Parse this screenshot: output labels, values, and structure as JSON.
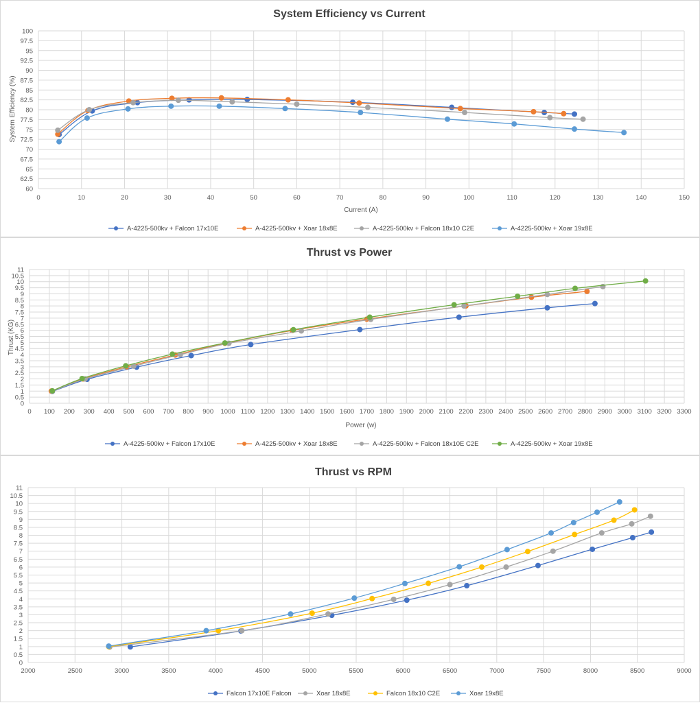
{
  "chart_data": [
    {
      "type": "line",
      "title": "System Efficiency vs Current",
      "xlabel": "Current (A)",
      "ylabel": "System Efficiency (%)",
      "xlim": [
        0,
        150
      ],
      "ylim": [
        60,
        100
      ],
      "xticks": [
        0,
        10,
        20,
        30,
        40,
        50,
        60,
        70,
        80,
        90,
        100,
        110,
        120,
        130,
        140,
        150
      ],
      "yticks": [
        60,
        62.5,
        65,
        67.5,
        70,
        72.5,
        75,
        77.5,
        80,
        82.5,
        85,
        87.5,
        90,
        92.5,
        95,
        97.5,
        100
      ],
      "grid": true,
      "legend_position": "bottom",
      "series": [
        {
          "name": "A-4225-500kv + Falcon 17x10E",
          "color": "#4472c4",
          "points": [
            [
              4.8,
              73.7
            ],
            [
              12.5,
              79.7
            ],
            [
              23,
              81.8
            ],
            [
              35,
              82.5
            ],
            [
              48.5,
              82.6
            ],
            [
              73,
              81.9
            ],
            [
              96,
              80.6
            ],
            [
              117.5,
              79.3
            ],
            [
              124.5,
              78.9
            ]
          ]
        },
        {
          "name": "A-4225-500kv + Xoar 18x8E",
          "color": "#ed7d31",
          "points": [
            [
              4.5,
              73.8
            ],
            [
              11.5,
              79.8
            ],
            [
              21,
              82.2
            ],
            [
              31,
              82.9
            ],
            [
              42.5,
              83.0
            ],
            [
              58,
              82.5
            ],
            [
              74.5,
              81.7
            ],
            [
              98,
              80.3
            ],
            [
              115,
              79.5
            ],
            [
              122,
              79.0
            ]
          ]
        },
        {
          "name": "A-4225-500kv + Falcon 18x10 C2E",
          "color": "#a5a5a5",
          "points": [
            [
              4.5,
              74.8
            ],
            [
              11.8,
              80.0
            ],
            [
              22,
              81.8
            ],
            [
              32.5,
              82.4
            ],
            [
              45,
              82.0
            ],
            [
              60,
              81.4
            ],
            [
              76.5,
              80.6
            ],
            [
              99,
              79.3
            ],
            [
              118.8,
              78.0
            ],
            [
              126.5,
              77.6
            ]
          ]
        },
        {
          "name": "A-4225-500kv + Xoar 19x8E",
          "color": "#5b9bd5",
          "points": [
            [
              4.8,
              71.9
            ],
            [
              11.3,
              77.9
            ],
            [
              20.8,
              80.2
            ],
            [
              30.8,
              80.9
            ],
            [
              42,
              80.9
            ],
            [
              57.3,
              80.3
            ],
            [
              74.8,
              79.3
            ],
            [
              95,
              77.6
            ],
            [
              110.5,
              76.4
            ],
            [
              124.5,
              75.1
            ],
            [
              136,
              74.2
            ]
          ]
        }
      ]
    },
    {
      "type": "line",
      "title": "Thrust  vs Power",
      "xlabel": "Power (w)",
      "ylabel": "Thrust (KG)",
      "xlim": [
        0,
        3300
      ],
      "ylim": [
        0,
        11
      ],
      "xticks": [
        0,
        100,
        200,
        300,
        400,
        500,
        600,
        700,
        800,
        900,
        1000,
        1100,
        1200,
        1300,
        1400,
        1500,
        1600,
        1700,
        1800,
        1900,
        2000,
        2100,
        2200,
        2300,
        2400,
        2500,
        2600,
        2700,
        2800,
        2900,
        3000,
        3100,
        3200,
        3300
      ],
      "yticks": [
        0,
        0.5,
        1,
        1.5,
        2,
        2.5,
        3,
        3.5,
        4,
        4.5,
        5,
        5.5,
        6,
        6.5,
        7,
        7.5,
        8,
        8.5,
        9,
        9.5,
        10,
        10.5,
        11
      ],
      "grid": true,
      "legend_position": "bottom",
      "series": [
        {
          "name": "A-4225-500kv + Falcon 17x10E",
          "color": "#4472c4",
          "points": [
            [
              115,
              0.97
            ],
            [
              290,
              1.97
            ],
            [
              540,
              2.97
            ],
            [
              815,
              3.92
            ],
            [
              1115,
              4.83
            ],
            [
              1665,
              6.06
            ],
            [
              2165,
              7.08
            ],
            [
              2610,
              7.85
            ],
            [
              2850,
              8.2
            ]
          ]
        },
        {
          "name": "A-4225-500kv + Xoar 18x8E",
          "color": "#ed7d31",
          "points": [
            [
              110,
              1.0
            ],
            [
              270,
              2.0
            ],
            [
              490,
              3.0
            ],
            [
              735,
              3.97
            ],
            [
              985,
              4.93
            ],
            [
              1325,
              5.99
            ],
            [
              1700,
              6.92
            ],
            [
              2200,
              8.01
            ],
            [
              2530,
              8.72
            ],
            [
              2810,
              9.2
            ]
          ]
        },
        {
          "name": "A-4225-500kv + Falcon 18x10E C2E",
          "color": "#a5a5a5",
          "points": [
            [
              115,
              0.98
            ],
            [
              280,
              2.0
            ],
            [
              525,
              3.05
            ],
            [
              760,
              4.0
            ],
            [
              1005,
              4.93
            ],
            [
              1370,
              5.95
            ],
            [
              1720,
              6.9
            ],
            [
              2190,
              8.0
            ],
            [
              2610,
              8.95
            ],
            [
              2890,
              9.6
            ]
          ]
        },
        {
          "name": "A-4225-500kv + Xoar 19x8E",
          "color": "#70ad47",
          "points": [
            [
              115,
              1.02
            ],
            [
              265,
              2.03
            ],
            [
              485,
              3.08
            ],
            [
              720,
              4.04
            ],
            [
              985,
              4.96
            ],
            [
              1330,
              6.05
            ],
            [
              1715,
              7.08
            ],
            [
              2140,
              8.1
            ],
            [
              2460,
              8.8
            ],
            [
              2750,
              9.45
            ],
            [
              3105,
              10.06
            ]
          ]
        }
      ]
    },
    {
      "type": "line",
      "title": "Thrust  vs RPM",
      "xlabel": "",
      "ylabel": "",
      "xlim": [
        2000,
        9000
      ],
      "ylim": [
        0,
        11
      ],
      "xticks": [
        2000,
        2500,
        3000,
        3500,
        4000,
        4500,
        5000,
        5500,
        6000,
        6500,
        7000,
        7500,
        8000,
        8500,
        9000
      ],
      "yticks": [
        0,
        0.5,
        1,
        1.5,
        2,
        2.5,
        3,
        3.5,
        4,
        4.5,
        5,
        5.5,
        6,
        6.5,
        7,
        7.5,
        8,
        8.5,
        9,
        9.5,
        10,
        10.5,
        11
      ],
      "grid": true,
      "legend_position": "bottom",
      "series": [
        {
          "name": "Falcon 17x10E Falcon",
          "color": "#4472c4",
          "points": [
            [
              3090,
              0.98
            ],
            [
              4270,
              1.98
            ],
            [
              5240,
              2.97
            ],
            [
              6040,
              3.92
            ],
            [
              6680,
              4.83
            ],
            [
              7440,
              6.1
            ],
            [
              8020,
              7.12
            ],
            [
              8450,
              7.85
            ],
            [
              8650,
              8.2
            ]
          ]
        },
        {
          "name": "Xoar 18x8E",
          "color": "#a5a5a5",
          "points": [
            [
              2870,
              0.97
            ],
            [
              4280,
              2.0
            ],
            [
              5200,
              3.05
            ],
            [
              5900,
              3.97
            ],
            [
              6500,
              4.9
            ],
            [
              7100,
              6.0
            ],
            [
              7600,
              7.0
            ],
            [
              8120,
              8.15
            ],
            [
              8440,
              8.72
            ],
            [
              8640,
              9.2
            ]
          ]
        },
        {
          "name": "Falcon 18x10 C2E",
          "color": "#ffc000",
          "points": [
            [
              2860,
              1.0
            ],
            [
              4030,
              2.0
            ],
            [
              5030,
              3.1
            ],
            [
              5670,
              4.02
            ],
            [
              6270,
              4.98
            ],
            [
              6840,
              6.0
            ],
            [
              7330,
              6.98
            ],
            [
              7830,
              8.05
            ],
            [
              8250,
              8.95
            ],
            [
              8470,
              9.6
            ]
          ]
        },
        {
          "name": "Xoar 19x8E",
          "color": "#5b9bd5",
          "points": [
            [
              2860,
              1.03
            ],
            [
              3900,
              2.0
            ],
            [
              4800,
              3.05
            ],
            [
              5480,
              4.05
            ],
            [
              6020,
              4.97
            ],
            [
              6600,
              6.02
            ],
            [
              7110,
              7.1
            ],
            [
              7580,
              8.15
            ],
            [
              7820,
              8.8
            ],
            [
              8070,
              9.45
            ],
            [
              8310,
              10.1
            ]
          ]
        }
      ]
    }
  ]
}
